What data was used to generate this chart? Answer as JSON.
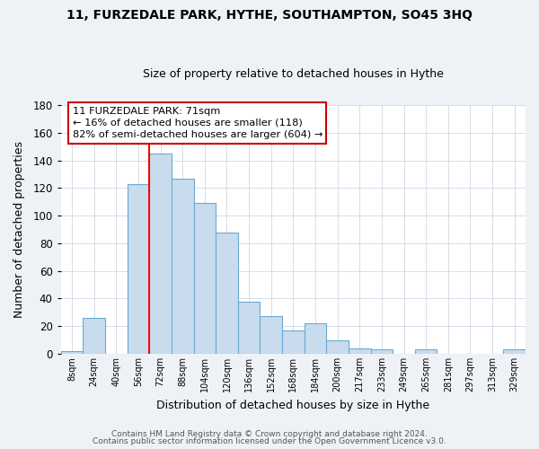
{
  "title": "11, FURZEDALE PARK, HYTHE, SOUTHAMPTON, SO45 3HQ",
  "subtitle": "Size of property relative to detached houses in Hythe",
  "xlabel": "Distribution of detached houses by size in Hythe",
  "ylabel": "Number of detached properties",
  "bin_labels": [
    "8sqm",
    "24sqm",
    "40sqm",
    "56sqm",
    "72sqm",
    "88sqm",
    "104sqm",
    "120sqm",
    "136sqm",
    "152sqm",
    "168sqm",
    "184sqm",
    "200sqm",
    "217sqm",
    "233sqm",
    "249sqm",
    "265sqm",
    "281sqm",
    "297sqm",
    "313sqm",
    "329sqm"
  ],
  "bar_heights": [
    2,
    26,
    0,
    123,
    145,
    127,
    109,
    88,
    38,
    27,
    17,
    22,
    10,
    4,
    3,
    0,
    3,
    0,
    0,
    0,
    3
  ],
  "bar_color": "#c9dced",
  "bar_edge_color": "#6aaad4",
  "red_line_bin_index": 4,
  "ylim": [
    0,
    180
  ],
  "yticks": [
    0,
    20,
    40,
    60,
    80,
    100,
    120,
    140,
    160,
    180
  ],
  "annotation_title": "11 FURZEDALE PARK: 71sqm",
  "annotation_line1": "← 16% of detached houses are smaller (118)",
  "annotation_line2": "82% of semi-detached houses are larger (604) →",
  "annotation_box_color": "#ffffff",
  "annotation_box_edge": "#cc0000",
  "footer_line1": "Contains HM Land Registry data © Crown copyright and database right 2024.",
  "footer_line2": "Contains public sector information licensed under the Open Government Licence v3.0.",
  "background_color": "#eef2f7",
  "plot_background_color": "#ffffff",
  "grid_color": "#d0d8e4",
  "title_fontsize": 10,
  "subtitle_fontsize": 9
}
